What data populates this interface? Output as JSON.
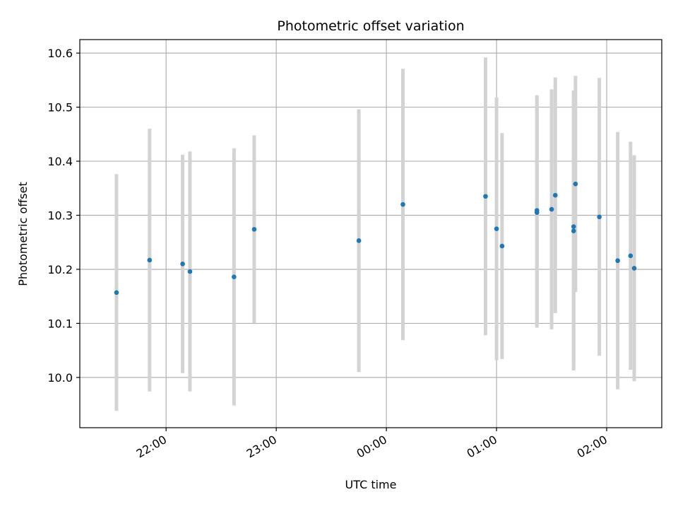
{
  "chart_data": {
    "type": "scatter",
    "title": "Photometric offset variation",
    "xlabel": "UTC time",
    "ylabel": "Photometric offset",
    "x_tick_labels": [
      "22:00",
      "23:00",
      "00:00",
      "01:00",
      "02:00"
    ],
    "y_tick_labels": [
      "10.0",
      "10.1",
      "10.2",
      "10.3",
      "10.4",
      "10.5",
      "10.6"
    ],
    "ylim": [
      9.907,
      10.625
    ],
    "xlim": [
      "21:13",
      "02:30"
    ],
    "grid": true,
    "colors": {
      "points": "#1f77b4",
      "error_bars": "#d3d3d3",
      "grid": "#b0b0b0"
    },
    "points": [
      {
        "time": "21:33",
        "y": 10.157,
        "err": 0.219
      },
      {
        "time": "21:51",
        "y": 10.217,
        "err": 0.243
      },
      {
        "time": "22:09",
        "y": 10.21,
        "err": 0.202
      },
      {
        "time": "22:13",
        "y": 10.196,
        "err": 0.222
      },
      {
        "time": "22:37",
        "y": 10.186,
        "err": 0.238
      },
      {
        "time": "22:48",
        "y": 10.274,
        "err": 0.174
      },
      {
        "time": "23:45",
        "y": 10.253,
        "err": 0.243
      },
      {
        "time": "00:09",
        "y": 10.32,
        "err": 0.251
      },
      {
        "time": "00:54",
        "y": 10.335,
        "err": 0.257
      },
      {
        "time": "01:00",
        "y": 10.275,
        "err": 0.243
      },
      {
        "time": "01:03",
        "y": 10.243,
        "err": 0.209
      },
      {
        "time": "01:22",
        "y": 10.309,
        "err": 0.213
      },
      {
        "time": "01:22",
        "y": 10.305,
        "err": 0.213
      },
      {
        "time": "01:30",
        "y": 10.311,
        "err": 0.222
      },
      {
        "time": "01:32",
        "y": 10.337,
        "err": 0.218
      },
      {
        "time": "01:42",
        "y": 10.279,
        "err": 0.252
      },
      {
        "time": "01:42",
        "y": 10.271,
        "err": 0.258
      },
      {
        "time": "01:43",
        "y": 10.358,
        "err": 0.2
      },
      {
        "time": "01:56",
        "y": 10.297,
        "err": 0.257
      },
      {
        "time": "02:06",
        "y": 10.216,
        "err": 0.238
      },
      {
        "time": "02:13",
        "y": 10.225,
        "err": 0.211
      },
      {
        "time": "02:15",
        "y": 10.202,
        "err": 0.209
      }
    ]
  }
}
